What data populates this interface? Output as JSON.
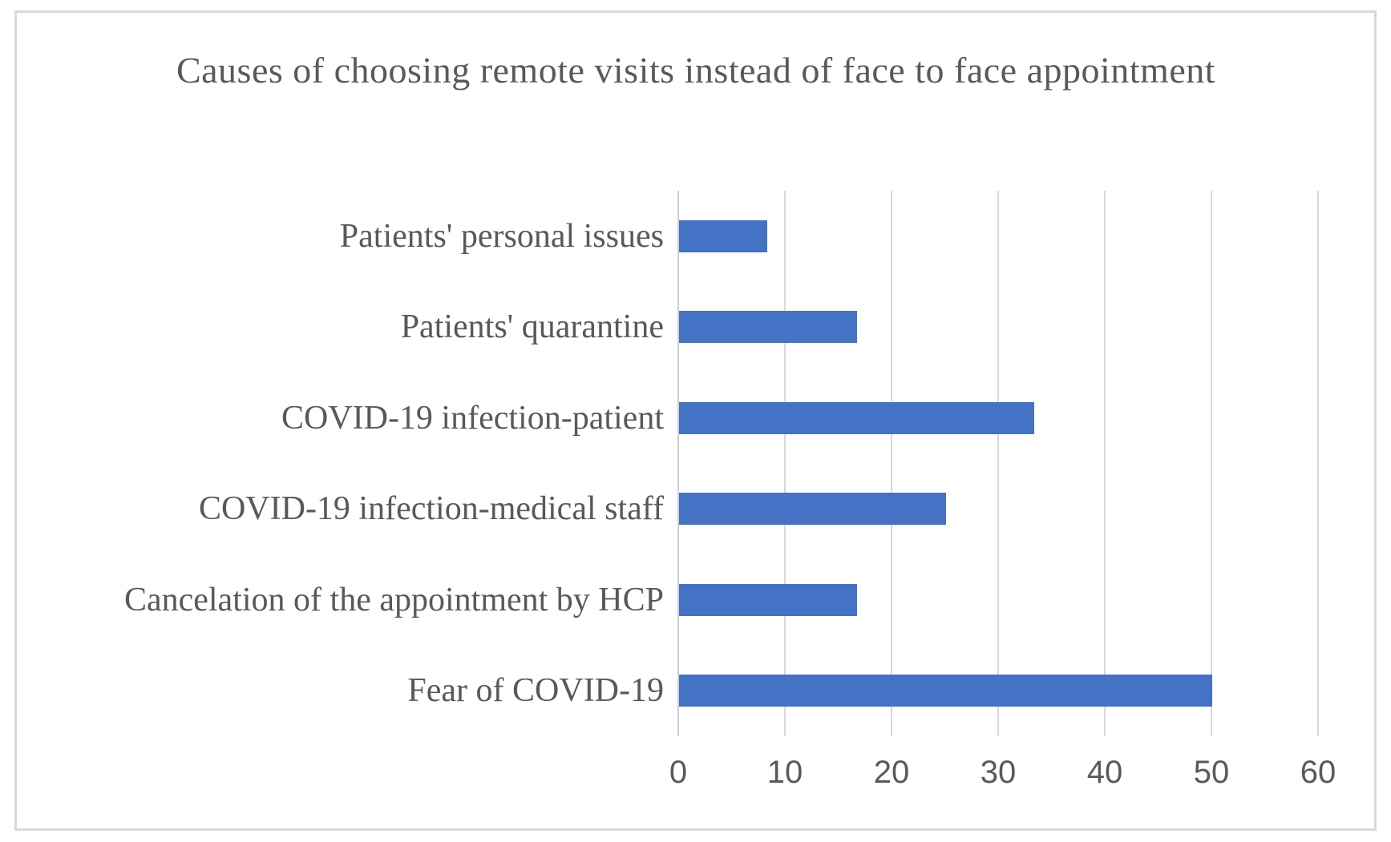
{
  "chart_data": {
    "type": "bar",
    "orientation": "horizontal",
    "title": "Causes of choosing remote visits instead of face to face appointment",
    "categories": [
      "Patients' personal issues",
      "Patients' quarantine",
      "COVID-19 infection-patient",
      "COVID-19 infection-medical staff",
      "Cancelation of the appointment by HCP",
      "Fear of COVID-19"
    ],
    "values": [
      8.3,
      16.7,
      33.3,
      25,
      16.7,
      50
    ],
    "xlim": [
      0,
      60
    ],
    "xticks": [
      0,
      10,
      20,
      30,
      40,
      50,
      60
    ],
    "grid": "vertical",
    "legend": "none",
    "colors": {
      "bar": "#4472C4",
      "text": "#595959",
      "gridline": "#D9D9D9",
      "axis_line": "#CFCFCF",
      "frame_border": "#D9D9D9",
      "background": "#FFFFFF"
    }
  }
}
